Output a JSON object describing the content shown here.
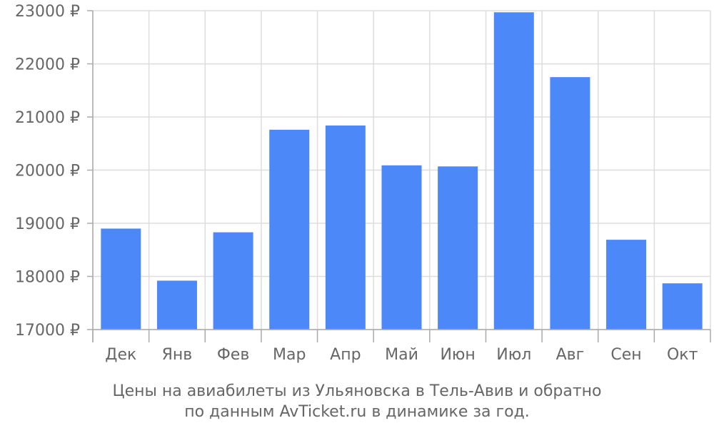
{
  "chart_data": {
    "type": "bar",
    "categories": [
      "Дек",
      "Янв",
      "Фев",
      "Мар",
      "Апр",
      "Май",
      "Июн",
      "Июл",
      "Авг",
      "Сен",
      "Окт"
    ],
    "values": [
      18900,
      17920,
      18830,
      20760,
      20840,
      20090,
      20070,
      22970,
      21750,
      18690,
      17870
    ],
    "ylim": [
      17000,
      23000
    ],
    "yticks": [
      17000,
      18000,
      19000,
      20000,
      21000,
      22000,
      23000
    ],
    "ytick_suffix": " ₽",
    "grid": true,
    "bar_color": "#4d88f9",
    "grid_color": "#dddddd",
    "axis_color": "#aaaaaa",
    "text_color": "#666666",
    "caption_lines": [
      "Цены на авиабилеты из Ульяновска в Тель-Авив и обратно",
      "по данным AvTicket.ru в динамике за год."
    ]
  }
}
